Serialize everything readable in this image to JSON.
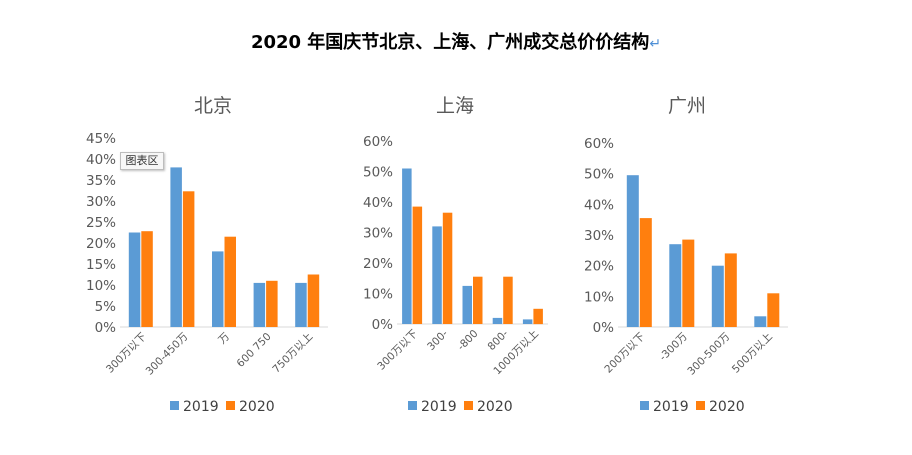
{
  "title": "2020 年国庆节北京、上海、广州成交总价价结构",
  "return_mark": "↵",
  "tooltip": "图表区",
  "colors": {
    "2019": "#5b9bd5",
    "2020": "#ff7f0e"
  },
  "chart_data": [
    {
      "type": "bar",
      "title": "北京",
      "categories": [
        "300万以下",
        "300-450万",
        "万",
        "600  750",
        "750万以上"
      ],
      "series": [
        {
          "name": "2019",
          "values": [
            22.5,
            38,
            18,
            10.5,
            10.5
          ]
        },
        {
          "name": "2020",
          "values": [
            22.8,
            32.3,
            21.5,
            11,
            12.5
          ]
        }
      ],
      "ylim": [
        0,
        45
      ],
      "yticks": [
        "0%",
        "5%",
        "10%",
        "15%",
        "20%",
        "25%",
        "30%",
        "35%",
        "40%",
        "45%"
      ],
      "legend": "bottom"
    },
    {
      "type": "bar",
      "title": "上海",
      "categories": [
        "300万以下",
        "300-",
        "-800",
        "800-",
        "1000万以上"
      ],
      "series": [
        {
          "name": "2019",
          "values": [
            51,
            32,
            12.5,
            2,
            1.5
          ]
        },
        {
          "name": "2020",
          "values": [
            38.5,
            36.5,
            15.5,
            15.5,
            5
          ]
        }
      ],
      "ylim": [
        0,
        60
      ],
      "yticks": [
        "0%",
        "10%",
        "20%",
        "30%",
        "40%",
        "50%",
        "60%"
      ],
      "legend": "bottom"
    },
    {
      "type": "bar",
      "title": "广州",
      "categories": [
        "200万以下",
        "-300万",
        "300-500万",
        "500万以上"
      ],
      "series": [
        {
          "name": "2019",
          "values": [
            49.5,
            27,
            20,
            3.5
          ]
        },
        {
          "name": "2020",
          "values": [
            35.5,
            28.5,
            24,
            11
          ]
        }
      ],
      "ylim": [
        0,
        60
      ],
      "yticks": [
        "0%",
        "10%",
        "20%",
        "30%",
        "40%",
        "50%",
        "60%"
      ],
      "legend": "bottom"
    }
  ]
}
